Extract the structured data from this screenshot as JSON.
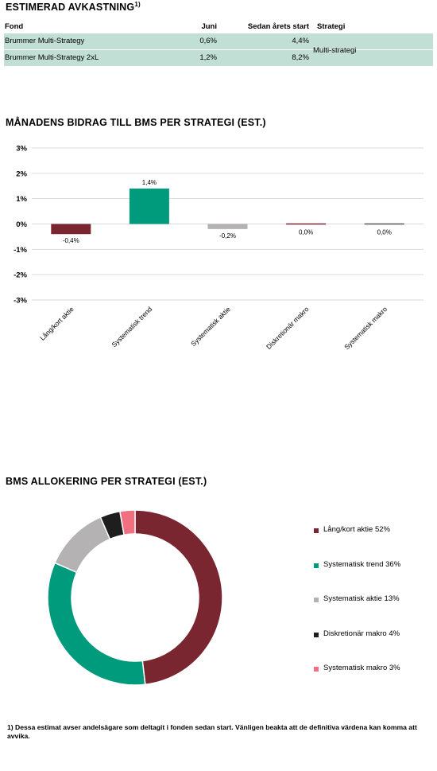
{
  "returns": {
    "title": "ESTIMERAD AVKASTNING",
    "title_sup": "1)",
    "headers": {
      "fund": "Fond",
      "june": "Juni",
      "ytd": "Sedan årets start",
      "strategy": "Strategi"
    },
    "rows": [
      {
        "fund": "Brummer Multi-Strategy",
        "june": "0,6%",
        "ytd": "4,4%"
      },
      {
        "fund": "Brummer Multi-Strategy 2xL",
        "june": "1,2%",
        "ytd": "8,2%"
      }
    ],
    "strategy_value": "Multi-strategi",
    "row_color": "#c2dfd5"
  },
  "contribution": {
    "title": "MÅNADENS BIDRAG TILL BMS PER STRATEGI (EST.)"
  },
  "allocation": {
    "title": "BMS ALLOKERING PER STRATEGI (EST.)",
    "legend": [
      {
        "label": "Lång/kort aktie 52%",
        "color": "#7a2631"
      },
      {
        "label": "Systematisk trend 36%",
        "color": "#009a7c"
      },
      {
        "label": "Systematisk aktie 13%",
        "color": "#b4b2b2"
      },
      {
        "label": "Diskretionär makro 4%",
        "color": "#1e1e1e"
      },
      {
        "label": "Systematisk makro 3%",
        "color": "#f07080"
      }
    ]
  },
  "footnote": "1) Dessa estimat avser andelsägare som deltagit i fonden sedan start. Vänligen beakta att de definitiva värdena kan komma att avvika.",
  "chart_data": [
    {
      "type": "bar",
      "title": "MÅNADENS BIDRAG TILL BMS PER STRATEGI (EST.)",
      "categories": [
        "Lång/kort aktie",
        "Systematisk trend",
        "Systematisk aktie",
        "Diskretionär makro",
        "Systematisk makro"
      ],
      "values": [
        -0.4,
        1.4,
        -0.2,
        0.0,
        0.0
      ],
      "data_labels": [
        "-0,4%",
        "1,4%",
        "-0,2%",
        "0,0%",
        "0,0%"
      ],
      "colors": [
        "#7a2631",
        "#009a7c",
        "#b4b2b2",
        "#7a2631",
        "#555555"
      ],
      "yticks": [
        3,
        2,
        1,
        0,
        -1,
        -2,
        -3
      ],
      "ytick_labels": [
        "3%",
        "2%",
        "1%",
        "0%",
        "-1%",
        "-2%",
        "-3%"
      ],
      "ylim": [
        -3,
        3
      ],
      "grid": true,
      "xlabel": "",
      "ylabel": ""
    },
    {
      "type": "pie",
      "title": "BMS ALLOKERING PER STRATEGI (EST.)",
      "donut": true,
      "labels": [
        "Lång/kort aktie",
        "Systematisk trend",
        "Systematisk aktie",
        "Diskretionär makro",
        "Systematisk makro"
      ],
      "values": [
        52,
        36,
        13,
        4,
        3
      ],
      "colors": [
        "#7a2631",
        "#009a7c",
        "#b4b2b2",
        "#1e1e1e",
        "#f07080"
      ],
      "legend_position": "right"
    }
  ]
}
